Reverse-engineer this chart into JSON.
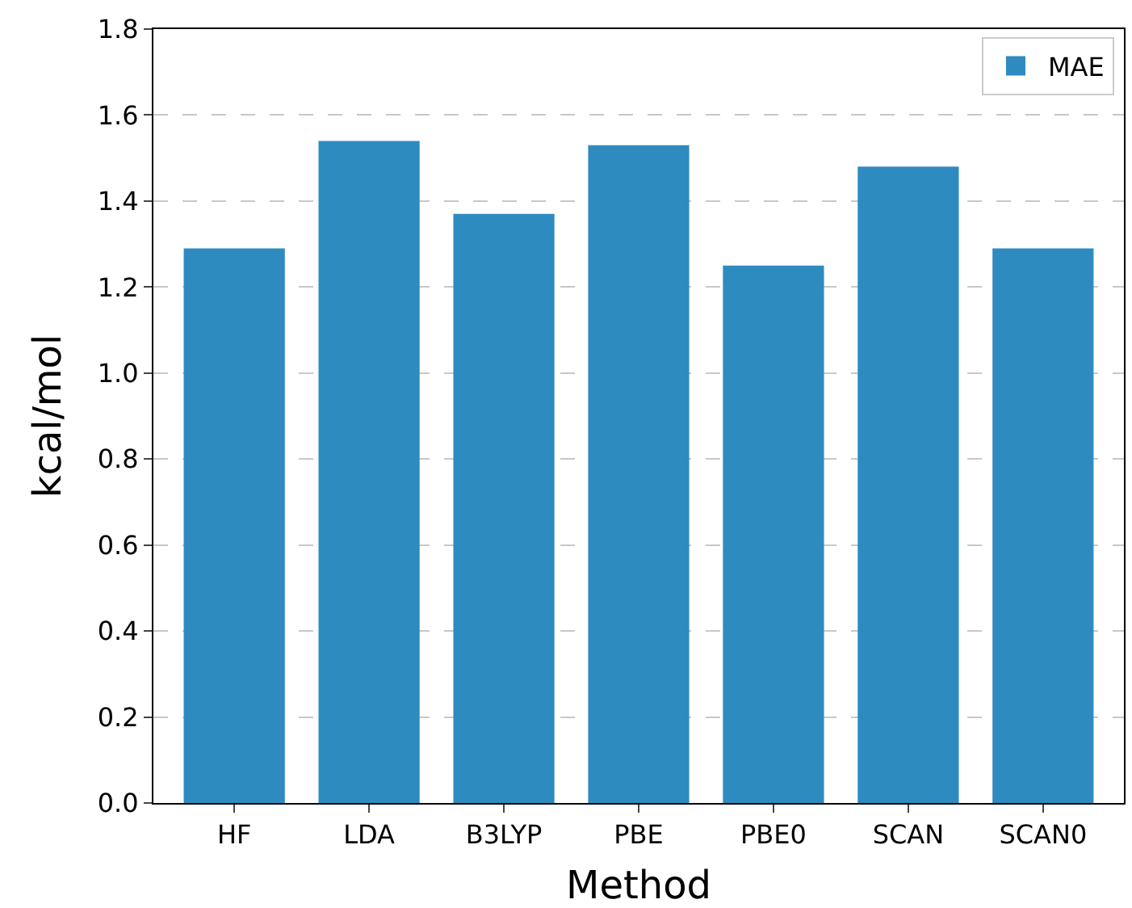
{
  "chart_data": {
    "type": "bar",
    "xlabel": "Method",
    "ylabel": "kcal/mol",
    "categories": [
      "HF",
      "LDA",
      "B3LYP",
      "PBE",
      "PBE0",
      "SCAN",
      "SCAN0"
    ],
    "series": [
      {
        "name": "MAE",
        "color": "#2e8bc0",
        "values": [
          1.29,
          1.54,
          1.37,
          1.53,
          1.25,
          1.48,
          1.29
        ]
      }
    ],
    "ylim": [
      0,
      1.8
    ],
    "yticks": [
      {
        "value": 0,
        "label": "0.0"
      },
      {
        "value": 0.2,
        "label": "0.2"
      },
      {
        "value": 0.4,
        "label": "0.4"
      },
      {
        "value": 0.6,
        "label": "0.6"
      },
      {
        "value": 0.8,
        "label": "0.8"
      },
      {
        "value": 1.0,
        "label": "1.0"
      },
      {
        "value": 1.2,
        "label": "1.2"
      },
      {
        "value": 1.4,
        "label": "1.4"
      },
      {
        "value": 1.6,
        "label": "1.6"
      },
      {
        "value": 1.8,
        "label": "1.8"
      }
    ],
    "grid": "y",
    "legend": "top right"
  }
}
